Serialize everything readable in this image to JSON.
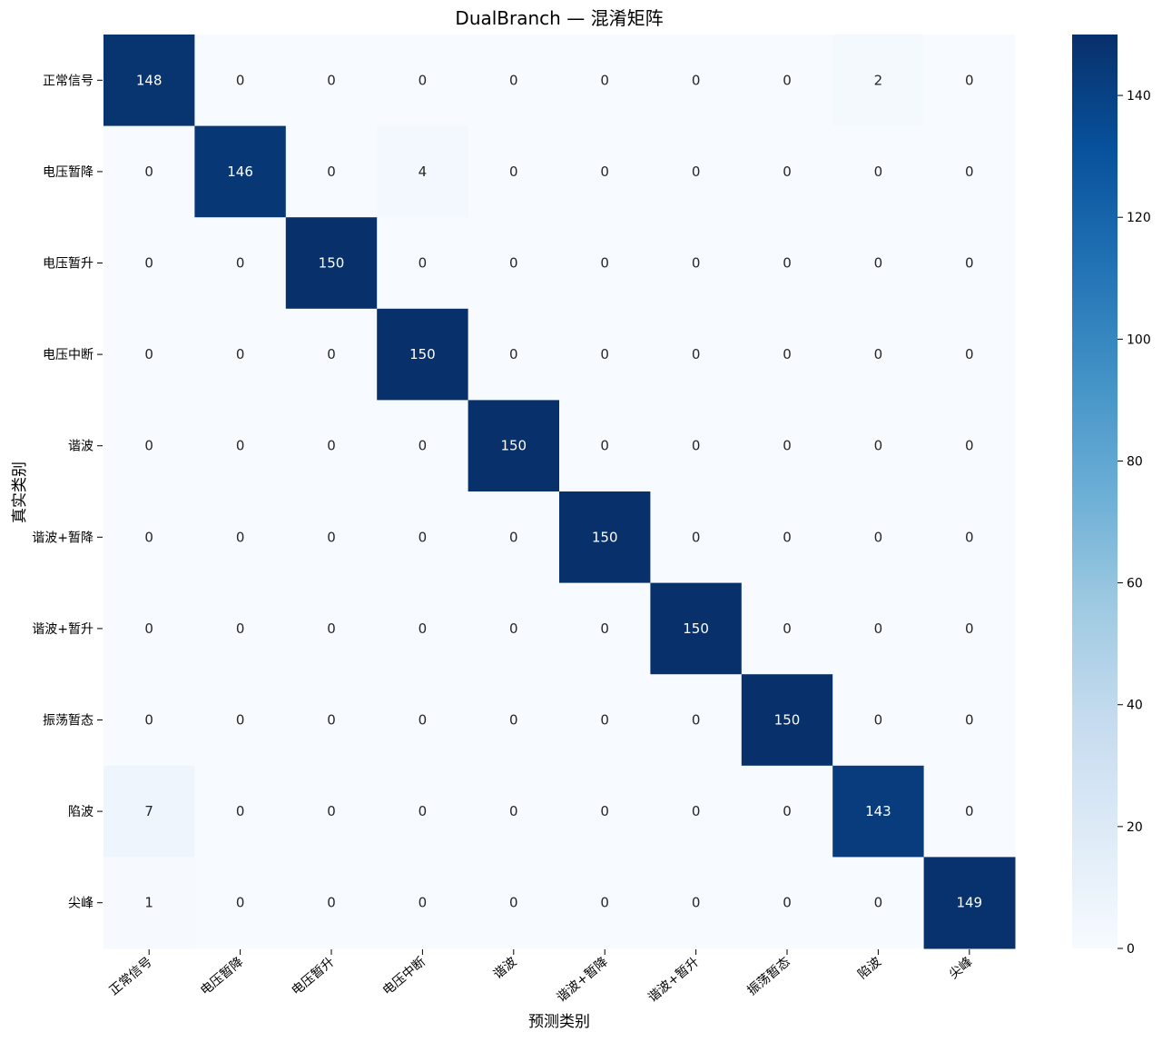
{
  "chart_data": {
    "type": "heatmap",
    "title": "DualBranch — 混淆矩阵",
    "xlabel": "预测类别",
    "ylabel": "真实类别",
    "x_categories": [
      "正常信号",
      "电压暂降",
      "电压暂升",
      "电压中断",
      "谐波",
      "谐波+暂降",
      "谐波+暂升",
      "振荡暂态",
      "陷波",
      "尖峰"
    ],
    "y_categories": [
      "正常信号",
      "电压暂降",
      "电压暂升",
      "电压中断",
      "谐波",
      "谐波+暂降",
      "谐波+暂升",
      "振荡暂态",
      "陷波",
      "尖峰"
    ],
    "matrix": [
      [
        148,
        0,
        0,
        0,
        0,
        0,
        0,
        0,
        2,
        0
      ],
      [
        0,
        146,
        0,
        4,
        0,
        0,
        0,
        0,
        0,
        0
      ],
      [
        0,
        0,
        150,
        0,
        0,
        0,
        0,
        0,
        0,
        0
      ],
      [
        0,
        0,
        0,
        150,
        0,
        0,
        0,
        0,
        0,
        0
      ],
      [
        0,
        0,
        0,
        0,
        150,
        0,
        0,
        0,
        0,
        0
      ],
      [
        0,
        0,
        0,
        0,
        0,
        150,
        0,
        0,
        0,
        0
      ],
      [
        0,
        0,
        0,
        0,
        0,
        0,
        150,
        0,
        0,
        0
      ],
      [
        0,
        0,
        0,
        0,
        0,
        0,
        0,
        150,
        0,
        0
      ],
      [
        7,
        0,
        0,
        0,
        0,
        0,
        0,
        0,
        143,
        0
      ],
      [
        1,
        0,
        0,
        0,
        0,
        0,
        0,
        0,
        0,
        149
      ]
    ],
    "colormap": "Blues",
    "value_range": [
      0,
      150
    ],
    "colorbar_ticks": [
      0,
      20,
      40,
      60,
      80,
      100,
      120,
      140
    ]
  }
}
